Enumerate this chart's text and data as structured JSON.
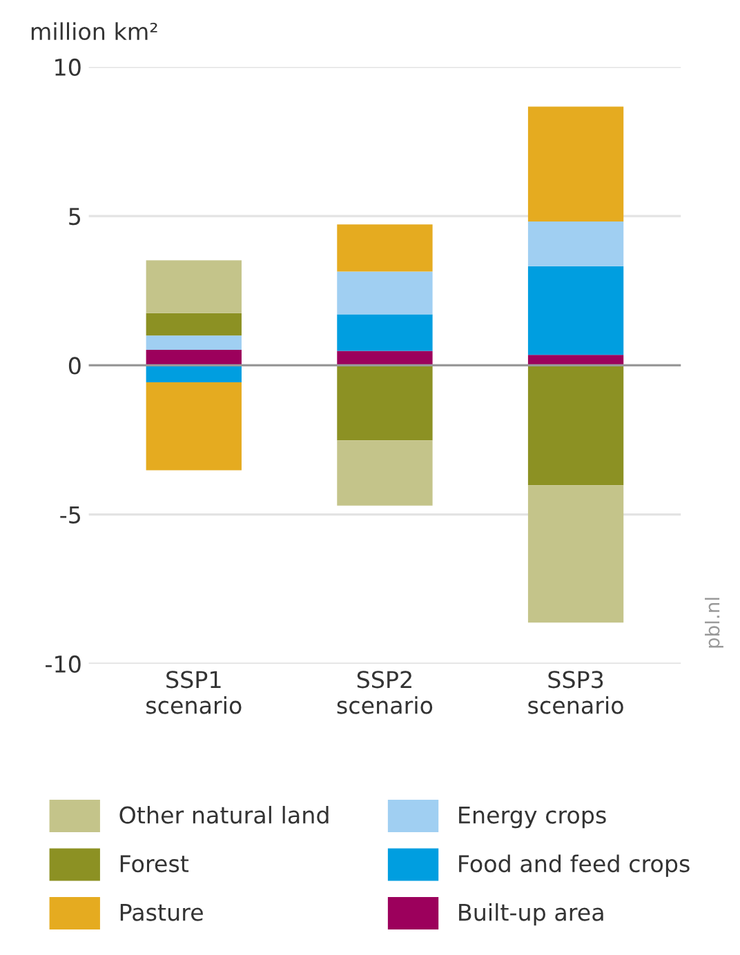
{
  "chart_data": {
    "type": "bar",
    "stacked": true,
    "ylabel": "million km²",
    "categories": [
      "SSP1\nscenario",
      "SSP2\nscenario",
      "SSP3\nscenario"
    ],
    "series": [
      {
        "name": "Built-up area",
        "color": "#9c005c",
        "values": [
          0.52,
          0.48,
          0.35
        ]
      },
      {
        "name": "Food and feed crops",
        "color": "#009ee0",
        "values": [
          -0.57,
          1.23,
          2.97
        ]
      },
      {
        "name": "Energy crops",
        "color": "#a0cff2",
        "values": [
          0.48,
          1.43,
          1.5
        ]
      },
      {
        "name": "Pasture",
        "color": "#e5ab20",
        "values": [
          -2.95,
          1.58,
          3.85
        ]
      },
      {
        "name": "Forest",
        "color": "#8c9123",
        "values": [
          0.75,
          -2.52,
          -4.02
        ]
      },
      {
        "name": "Other natural land",
        "color": "#c4c48a",
        "values": [
          1.77,
          -2.18,
          -4.6
        ]
      }
    ],
    "ylim": [
      -10,
      10
    ],
    "yticks": [
      {
        "value": -10,
        "label": "-10"
      },
      {
        "value": -5,
        "label": "-5"
      },
      0,
      5,
      10
    ],
    "grid": "y",
    "legend": "bottom",
    "ref_lines": [
      {
        "axis": "y",
        "value": 0,
        "label": null,
        "color": "#999999"
      }
    ],
    "annotations": [
      "pbl.nl"
    ]
  }
}
